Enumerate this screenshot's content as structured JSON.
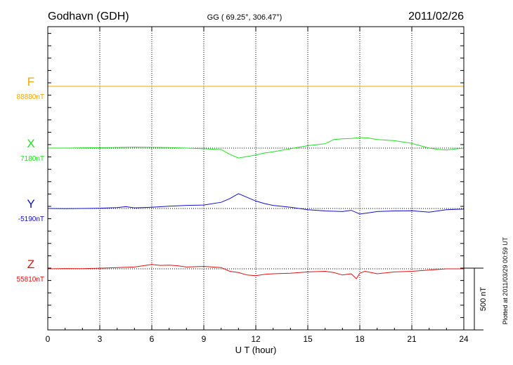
{
  "header": {
    "station": "Godhavn (GDH)",
    "coords": "GG ( 69.25°, 306.47°)",
    "date": "2011/02/26"
  },
  "side_note": "Plotted at 2011/03/29 00:59 UT",
  "chart_data": {
    "type": "line",
    "xlabel": "U T (hour)",
    "xlim": [
      0,
      24
    ],
    "xticks": [
      0,
      3,
      6,
      9,
      12,
      15,
      18,
      21,
      24
    ],
    "xtick_labels": [
      "0",
      "3",
      "6",
      "9",
      "12",
      "15",
      "18",
      "21",
      "24"
    ],
    "y_units": "nT",
    "scale_bar_label": "500 nT",
    "scale_bar_nT": 500,
    "grid": true,
    "series": [
      {
        "name": "F",
        "baseline_label": "88880nT",
        "baseline": 88880,
        "color": "#f2a800",
        "x": [
          0,
          24
        ],
        "values": [
          88880,
          88880
        ]
      },
      {
        "name": "X",
        "baseline_label": "7180nT",
        "baseline": 7180,
        "color": "#22e022",
        "x": [
          0,
          1,
          2,
          3,
          4,
          5,
          6,
          7,
          8,
          9,
          10,
          10.5,
          11,
          11.5,
          12,
          12.5,
          13,
          14,
          15,
          16,
          16.5,
          17,
          17.5,
          18,
          18.5,
          19,
          20,
          21,
          22,
          22.5,
          23,
          24
        ],
        "values": [
          7180,
          7180,
          7182,
          7183,
          7185,
          7188,
          7186,
          7184,
          7180,
          7175,
          7168,
          7130,
          7100,
          7112,
          7125,
          7140,
          7150,
          7175,
          7200,
          7215,
          7250,
          7255,
          7258,
          7265,
          7262,
          7250,
          7240,
          7218,
          7180,
          7170,
          7165,
          7180
        ]
      },
      {
        "name": "Y",
        "baseline_label": "-5190nT",
        "baseline": -5190,
        "color": "#1010cc",
        "x": [
          0,
          1,
          2,
          3,
          4,
          4.5,
          5,
          6,
          7,
          8,
          9,
          10,
          10.5,
          11,
          11.5,
          12,
          12.5,
          13,
          14,
          15,
          16,
          17,
          17.5,
          18,
          18.5,
          19,
          20,
          21,
          22,
          23,
          24
        ],
        "values": [
          -5190,
          -5191,
          -5190,
          -5188,
          -5183,
          -5175,
          -5185,
          -5180,
          -5172,
          -5165,
          -5162,
          -5140,
          -5110,
          -5070,
          -5100,
          -5130,
          -5150,
          -5165,
          -5180,
          -5200,
          -5210,
          -5215,
          -5205,
          -5235,
          -5225,
          -5215,
          -5210,
          -5208,
          -5220,
          -5200,
          -5195
        ]
      },
      {
        "name": "Z",
        "baseline_label": "55810nT",
        "baseline": 55810,
        "color": "#e01010",
        "x": [
          0,
          1,
          2,
          3,
          4,
          5,
          5.5,
          6,
          6.5,
          7,
          7.5,
          8,
          9,
          10,
          10.5,
          11,
          11.5,
          12,
          12.5,
          13,
          14,
          15,
          16,
          16.5,
          17,
          17.5,
          17.8,
          18,
          18.3,
          19,
          20,
          21,
          22,
          23,
          24
        ],
        "values": [
          55810,
          55812,
          55811,
          55815,
          55820,
          55825,
          55835,
          55845,
          55838,
          55840,
          55835,
          55825,
          55830,
          55820,
          55790,
          55780,
          55760,
          55755,
          55765,
          55770,
          55775,
          55785,
          55790,
          55780,
          55760,
          55770,
          55730,
          55775,
          55790,
          55770,
          55785,
          55790,
          55800,
          55810,
          55810
        ]
      }
    ]
  }
}
